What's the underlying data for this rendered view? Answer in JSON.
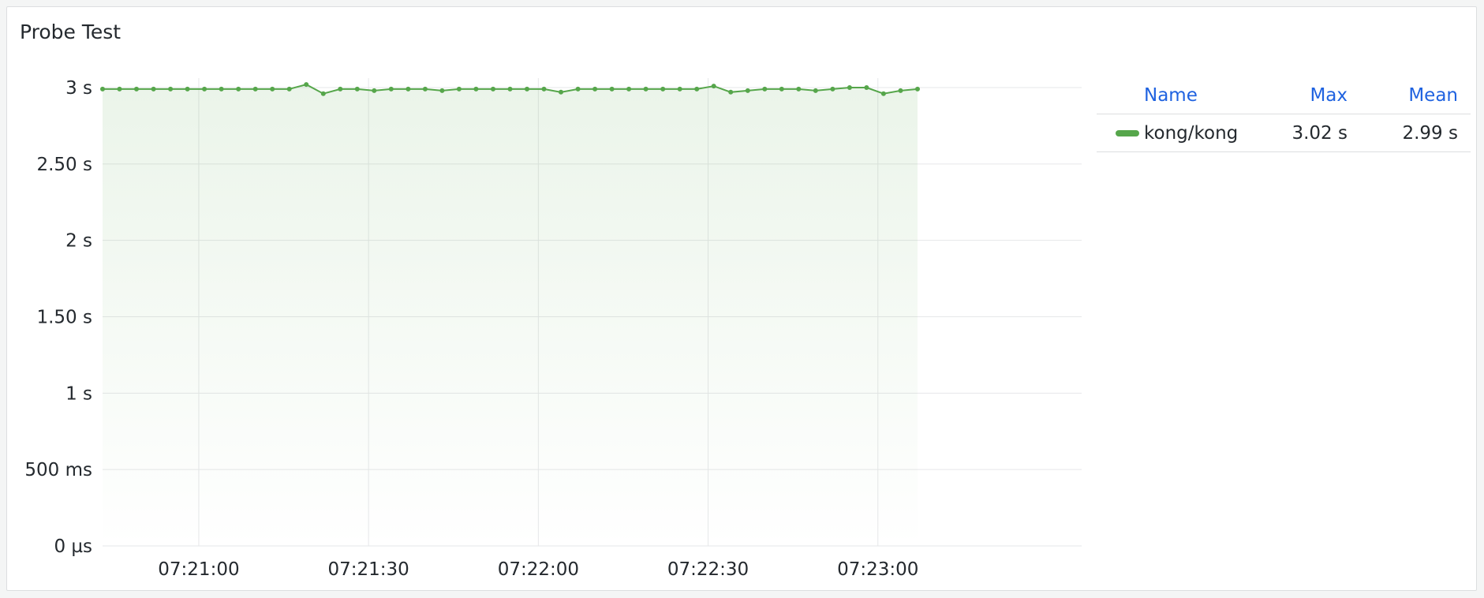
{
  "panel": {
    "title": "Probe Test"
  },
  "colors": {
    "series": "#56a64b",
    "grid": "#e6e7e9",
    "text": "#24292e",
    "legend_header": "#1f62e0"
  },
  "legend": {
    "headers": {
      "name": "Name",
      "max": "Max",
      "mean": "Mean"
    },
    "rows": [
      {
        "name": "kong/kong",
        "max": "3.02 s",
        "mean": "2.99 s"
      }
    ]
  },
  "chart_data": {
    "type": "area",
    "title": "Probe Test",
    "xlabel": "",
    "ylabel": "",
    "x_start_time": "07:20:43",
    "x_interval_seconds": 3,
    "x": [
      "07:20:43",
      "07:20:46",
      "07:20:49",
      "07:20:52",
      "07:20:55",
      "07:20:58",
      "07:21:01",
      "07:21:04",
      "07:21:07",
      "07:21:10",
      "07:21:13",
      "07:21:16",
      "07:21:19",
      "07:21:22",
      "07:21:25",
      "07:21:28",
      "07:21:31",
      "07:21:34",
      "07:21:37",
      "07:21:40",
      "07:21:43",
      "07:21:46",
      "07:21:49",
      "07:21:52",
      "07:21:55",
      "07:21:58",
      "07:22:01",
      "07:22:04",
      "07:22:07",
      "07:22:10",
      "07:22:13",
      "07:22:16",
      "07:22:19",
      "07:22:22",
      "07:22:25",
      "07:22:28",
      "07:22:31",
      "07:22:34",
      "07:22:37",
      "07:22:40",
      "07:22:43",
      "07:22:46",
      "07:22:49",
      "07:22:52",
      "07:22:55",
      "07:22:58",
      "07:23:01",
      "07:23:04",
      "07:23:07"
    ],
    "series": [
      {
        "name": "kong/kong",
        "values": [
          2.99,
          2.99,
          2.99,
          2.99,
          2.99,
          2.99,
          2.99,
          2.99,
          2.99,
          2.99,
          2.99,
          2.99,
          3.02,
          2.96,
          2.99,
          2.99,
          2.98,
          2.99,
          2.99,
          2.99,
          2.98,
          2.99,
          2.99,
          2.99,
          2.99,
          2.99,
          2.99,
          2.97,
          2.99,
          2.99,
          2.99,
          2.99,
          2.99,
          2.99,
          2.99,
          2.99,
          3.01,
          2.97,
          2.98,
          2.99,
          2.99,
          2.99,
          2.98,
          2.99,
          3.0,
          3.0,
          2.96,
          2.98,
          2.99
        ]
      }
    ],
    "y_ticks": [
      {
        "value": 0,
        "label": "0 µs"
      },
      {
        "value": 0.5,
        "label": "500 ms"
      },
      {
        "value": 1,
        "label": "1 s"
      },
      {
        "value": 1.5,
        "label": "1.50 s"
      },
      {
        "value": 2,
        "label": "2 s"
      },
      {
        "value": 2.5,
        "label": "2.50 s"
      },
      {
        "value": 3,
        "label": "3 s"
      }
    ],
    "x_ticks": [
      {
        "label": "07:21:00"
      },
      {
        "label": "07:21:30"
      },
      {
        "label": "07:22:00"
      },
      {
        "label": "07:22:30"
      },
      {
        "label": "07:23:00"
      }
    ],
    "ylim": [
      0,
      3
    ],
    "grid": true,
    "legend_placement": "right"
  }
}
